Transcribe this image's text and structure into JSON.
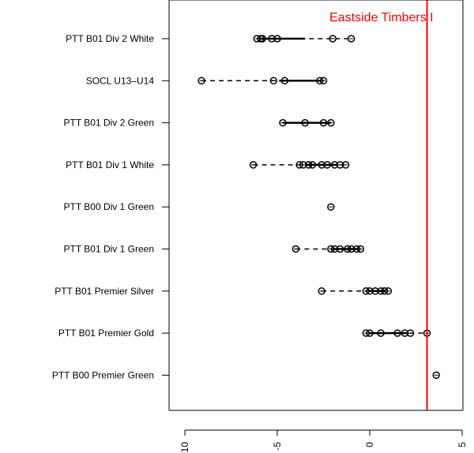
{
  "chart_data": {
    "type": "scatter",
    "title": "",
    "xlabel": "",
    "ylabel": "",
    "xlim": [
      -10.5,
      5
    ],
    "x_ticks": [
      -10,
      -5,
      0,
      5
    ],
    "x_tick_labels": [
      "-10",
      "-5",
      "0",
      "5"
    ],
    "grid": false,
    "legend": "none",
    "categories": [
      "PTT B01 Div 2 White",
      "SOCL U13–U14",
      "PTT B01 Div 2 Green",
      "PTT B01 Div 1 White",
      "PTT B00 Div 1 Green",
      "PTT B01 Div 1 Green",
      "PTT B01 Premier Silver",
      "PTT B01 Premier Gold",
      "PTT B00 Premier Green"
    ],
    "groups": [
      {
        "name": "PTT B01 Div 2 White",
        "points": [
          -6.1,
          -5.9,
          -5.8,
          -5.3,
          -5.0,
          -2.0,
          -1.0
        ],
        "q1": -5.9,
        "q3": -3.5,
        "min": -6.1,
        "max": -1.0
      },
      {
        "name": "SOCL U13–U14",
        "points": [
          -9.1,
          -5.2,
          -4.6,
          -2.7,
          -2.5
        ],
        "q1": -4.9,
        "q3": -2.6,
        "min": -9.1,
        "max": -2.5
      },
      {
        "name": "PTT B01 Div 2 Green",
        "points": [
          -4.7,
          -3.5,
          -2.5,
          -2.1
        ],
        "q1": -4.7,
        "q3": -2.1,
        "min": -4.7,
        "max": -2.1
      },
      {
        "name": "PTT B01 Div 1 White",
        "points": [
          -6.3,
          -3.8,
          -3.6,
          -3.3,
          -3.1,
          -2.6,
          -2.3,
          -1.9,
          -1.6,
          -1.3
        ],
        "q1": -3.4,
        "q3": -1.8,
        "min": -6.3,
        "max": -1.3
      },
      {
        "name": "PTT B00 Div 1 Green",
        "points": [
          -2.1
        ],
        "q1": -2.1,
        "q3": -2.1,
        "min": -2.1,
        "max": -2.1
      },
      {
        "name": "PTT B01 Div 1 Green",
        "points": [
          -4.0,
          -2.1,
          -1.9,
          -1.6,
          -1.2,
          -1.0,
          -0.7,
          -0.5
        ],
        "q1": -2.0,
        "q3": -0.6,
        "min": -4.0,
        "max": -0.5
      },
      {
        "name": "PTT B01 Premier Silver",
        "points": [
          -2.6,
          -0.2,
          0.0,
          0.3,
          0.6,
          0.8,
          1.0
        ],
        "q1": -0.1,
        "q3": 0.8,
        "min": -2.6,
        "max": 1.0
      },
      {
        "name": "PTT B01 Premier Gold",
        "points": [
          -0.2,
          0.0,
          0.6,
          1.5,
          1.9,
          2.2,
          3.1
        ],
        "q1": 0.0,
        "q3": 2.0,
        "min": -0.2,
        "max": 3.1
      },
      {
        "name": "PTT B00 Premier Green",
        "points": [
          3.6
        ],
        "q1": 3.6,
        "q3": 3.6,
        "min": 3.6,
        "max": 3.6
      }
    ],
    "reference_line": {
      "value": 3.1,
      "label": "Eastside Timbers I",
      "color": "#ff0000"
    }
  }
}
